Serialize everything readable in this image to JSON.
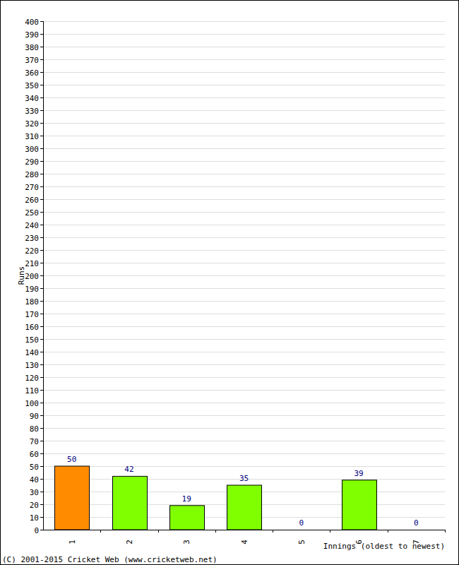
{
  "chart_data": {
    "type": "bar",
    "categories": [
      "1",
      "2",
      "3",
      "4",
      "5",
      "6",
      "7"
    ],
    "values": [
      50,
      42,
      19,
      35,
      0,
      39,
      0
    ],
    "colors": [
      "#ff8c00",
      "#80ff00",
      "#80ff00",
      "#80ff00",
      "#80ff00",
      "#80ff00",
      "#80ff00"
    ],
    "x_label": "Innings (oldest to newest)",
    "y_label": "Runs",
    "annotations": [
      "(C) 2001-2015 Cricket Web (www.cricketweb.net)"
    ],
    "ylim": [
      0,
      400
    ],
    "yticks": [
      0,
      10,
      20,
      30,
      40,
      50,
      60,
      70,
      80,
      90,
      100,
      110,
      120,
      130,
      140,
      150,
      160,
      170,
      180,
      190,
      200,
      210,
      220,
      230,
      240,
      250,
      260,
      270,
      280,
      290,
      300,
      310,
      320,
      330,
      340,
      350,
      360,
      370,
      380,
      390,
      400
    ],
    "grid": true,
    "data_labels": true
  }
}
